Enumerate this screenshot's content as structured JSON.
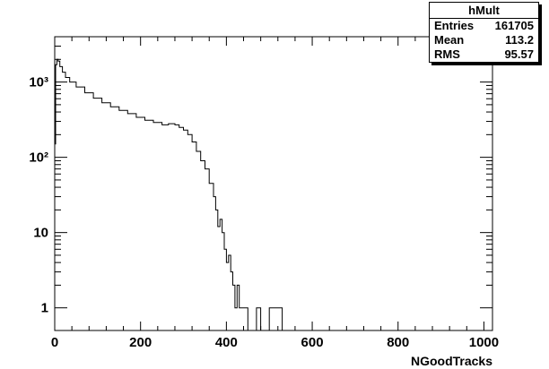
{
  "chart_data": {
    "type": "histogram",
    "xlabel": "NGoodTracks",
    "ylabel": "",
    "xlim": [
      0,
      1020
    ],
    "ylim": [
      0.5,
      4000
    ],
    "yscale": "log",
    "grid": false,
    "x_ticks": [
      "0",
      "200",
      "400",
      "600",
      "800",
      "1000"
    ],
    "y_ticks": [
      "1",
      "10",
      "10²",
      "10³"
    ],
    "x": [
      0,
      2,
      5,
      8,
      12,
      18,
      25,
      35,
      50,
      70,
      90,
      110,
      130,
      150,
      170,
      190,
      210,
      230,
      250,
      265,
      280,
      290,
      300,
      310,
      320,
      330,
      340,
      350,
      360,
      370,
      375,
      380,
      385,
      390,
      395,
      400,
      405,
      410,
      415,
      420,
      425,
      430,
      435,
      440,
      445,
      450,
      460,
      470,
      480,
      490,
      500,
      520,
      530,
      550
    ],
    "y": [
      150,
      1700,
      2000,
      1900,
      1600,
      1350,
      1150,
      1000,
      860,
      720,
      610,
      530,
      470,
      420,
      380,
      340,
      310,
      290,
      270,
      280,
      270,
      250,
      230,
      200,
      160,
      120,
      90,
      70,
      45,
      30,
      20,
      12,
      15,
      10,
      6,
      4,
      5,
      3,
      2,
      1,
      2,
      1,
      1,
      1,
      1,
      0,
      0,
      1,
      0,
      0,
      1,
      1,
      0,
      0
    ],
    "stats": {
      "title": "hMult",
      "rows": [
        {
          "label": "Entries",
          "value": "161705"
        },
        {
          "label": "Mean",
          "value": "113.2"
        },
        {
          "label": "RMS",
          "value": "95.57"
        }
      ]
    }
  }
}
